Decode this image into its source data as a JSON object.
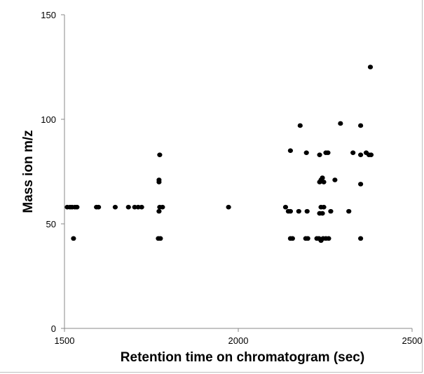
{
  "chart_data": {
    "type": "scatter",
    "title": "",
    "xlabel": "Retention time on chromatogram (sec)",
    "ylabel": "Mass ion m/z",
    "xlim": [
      1500,
      2500
    ],
    "ylim": [
      0,
      150
    ],
    "xticks": [
      1500,
      2000,
      2500
    ],
    "yticks": [
      0,
      50,
      100,
      150
    ],
    "xtick_labels": [
      "1500",
      "2000",
      "2500"
    ],
    "ytick_labels": [
      "0",
      "50",
      "100",
      "150"
    ],
    "grid": false,
    "legend": "none",
    "marker_color": "#000000",
    "points": [
      {
        "x": 1508,
        "y": 58
      },
      {
        "x": 1516,
        "y": 58
      },
      {
        "x": 1522,
        "y": 58
      },
      {
        "x": 1530,
        "y": 58
      },
      {
        "x": 1536,
        "y": 58
      },
      {
        "x": 1526,
        "y": 43
      },
      {
        "x": 1592,
        "y": 58
      },
      {
        "x": 1598,
        "y": 58
      },
      {
        "x": 1646,
        "y": 58
      },
      {
        "x": 1684,
        "y": 58
      },
      {
        "x": 1702,
        "y": 58
      },
      {
        "x": 1712,
        "y": 58
      },
      {
        "x": 1722,
        "y": 58
      },
      {
        "x": 1770,
        "y": 43
      },
      {
        "x": 1776,
        "y": 43
      },
      {
        "x": 1772,
        "y": 56
      },
      {
        "x": 1774,
        "y": 58
      },
      {
        "x": 1782,
        "y": 58
      },
      {
        "x": 1772,
        "y": 70
      },
      {
        "x": 1772,
        "y": 71
      },
      {
        "x": 1774,
        "y": 83
      },
      {
        "x": 1972,
        "y": 58
      },
      {
        "x": 2136,
        "y": 58
      },
      {
        "x": 2144,
        "y": 56
      },
      {
        "x": 2150,
        "y": 56
      },
      {
        "x": 2150,
        "y": 43
      },
      {
        "x": 2156,
        "y": 43
      },
      {
        "x": 2150,
        "y": 85
      },
      {
        "x": 2174,
        "y": 56
      },
      {
        "x": 2178,
        "y": 97
      },
      {
        "x": 2194,
        "y": 43
      },
      {
        "x": 2200,
        "y": 43
      },
      {
        "x": 2198,
        "y": 56
      },
      {
        "x": 2196,
        "y": 84
      },
      {
        "x": 2226,
        "y": 43
      },
      {
        "x": 2232,
        "y": 43
      },
      {
        "x": 2238,
        "y": 42
      },
      {
        "x": 2244,
        "y": 43
      },
      {
        "x": 2252,
        "y": 43
      },
      {
        "x": 2260,
        "y": 43
      },
      {
        "x": 2234,
        "y": 55
      },
      {
        "x": 2242,
        "y": 55
      },
      {
        "x": 2238,
        "y": 58
      },
      {
        "x": 2246,
        "y": 58
      },
      {
        "x": 2234,
        "y": 70
      },
      {
        "x": 2238,
        "y": 71
      },
      {
        "x": 2242,
        "y": 72
      },
      {
        "x": 2246,
        "y": 70
      },
      {
        "x": 2234,
        "y": 83
      },
      {
        "x": 2252,
        "y": 84
      },
      {
        "x": 2258,
        "y": 84
      },
      {
        "x": 2266,
        "y": 56
      },
      {
        "x": 2278,
        "y": 71
      },
      {
        "x": 2294,
        "y": 98
      },
      {
        "x": 2318,
        "y": 56
      },
      {
        "x": 2330,
        "y": 84
      },
      {
        "x": 2352,
        "y": 43
      },
      {
        "x": 2352,
        "y": 69
      },
      {
        "x": 2352,
        "y": 83
      },
      {
        "x": 2352,
        "y": 97
      },
      {
        "x": 2368,
        "y": 84
      },
      {
        "x": 2376,
        "y": 83
      },
      {
        "x": 2382,
        "y": 83
      },
      {
        "x": 2380,
        "y": 125
      }
    ]
  }
}
